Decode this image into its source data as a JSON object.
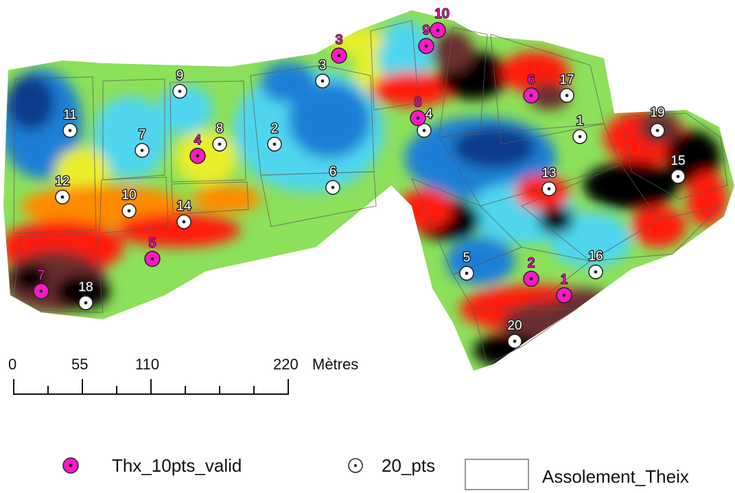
{
  "map": {
    "colors": {
      "very_low": "#0b3a8c",
      "low": "#1f7fd6",
      "mid_low": "#4fd6ee",
      "mid": "#8ce05a",
      "mid_high": "#e8ef2a",
      "high": "#ff8a00",
      "very_high": "#ff1a0a",
      "extreme": "#6b2e2e",
      "max": "#050505"
    },
    "valid_points": [
      {
        "id": "1"
      },
      {
        "id": "2"
      },
      {
        "id": "3"
      },
      {
        "id": "4"
      },
      {
        "id": "5"
      },
      {
        "id": "6"
      },
      {
        "id": "7"
      },
      {
        "id": "8"
      },
      {
        "id": "9"
      },
      {
        "id": "10"
      }
    ],
    "pts20": [
      {
        "id": "1"
      },
      {
        "id": "2"
      },
      {
        "id": "3"
      },
      {
        "id": "4"
      },
      {
        "id": "5"
      },
      {
        "id": "6"
      },
      {
        "id": "7"
      },
      {
        "id": "8"
      },
      {
        "id": "9"
      },
      {
        "id": "10"
      },
      {
        "id": "11"
      },
      {
        "id": "12"
      },
      {
        "id": "13"
      },
      {
        "id": "14"
      },
      {
        "id": "15"
      },
      {
        "id": "16"
      },
      {
        "id": "17"
      },
      {
        "id": "18"
      },
      {
        "id": "19"
      },
      {
        "id": "20"
      }
    ]
  },
  "scalebar": {
    "ticks": [
      "0",
      "55",
      "110",
      "220"
    ],
    "unit": "Mètres"
  },
  "legend": {
    "valid_label": "Thx_10pts_valid",
    "valid_color": "#ff19c6",
    "pts_label": "20_pts",
    "parcel_label": "Assolement_Theix"
  }
}
